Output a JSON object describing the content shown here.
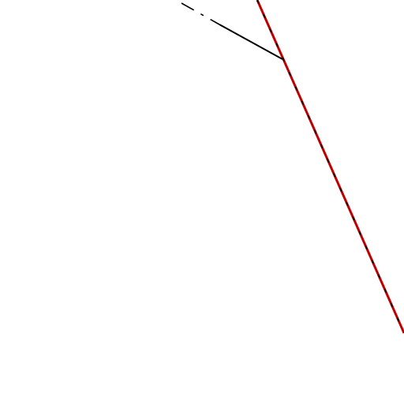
{
  "background": "#ffffff",
  "lines": [
    {
      "id": "red-line",
      "color": "#c00000",
      "style": "solid",
      "overlay_color": "#000000",
      "overlay_style": "dashed"
    },
    {
      "id": "black-line",
      "color": "#000000",
      "style": "solid"
    },
    {
      "id": "dash-dot-line",
      "color": "#000000",
      "style": "dash-dot"
    }
  ]
}
